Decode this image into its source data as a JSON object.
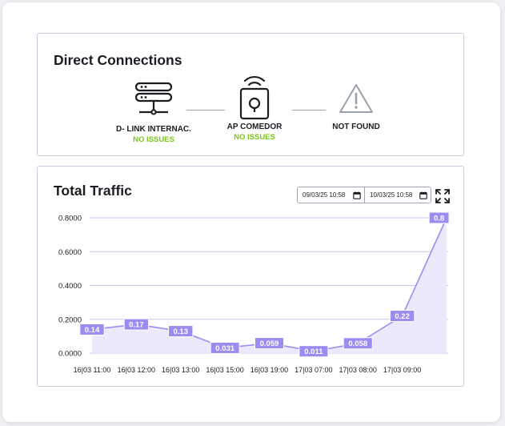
{
  "connections": {
    "title": "Direct Connections",
    "devices": [
      {
        "name": "D- LINK INTERNAC.",
        "status": "NO ISSUES",
        "icon": "server-icon"
      },
      {
        "name": "AP COMEDOR",
        "status": "NO ISSUES",
        "icon": "wireless-access-point-icon"
      },
      {
        "name": "NOT FOUND",
        "status": "",
        "icon": "warning-icon"
      }
    ],
    "status_color": "#7ac61a"
  },
  "traffic": {
    "title": "Total Traffic",
    "date_from": "09/03/25 10:58",
    "date_to": "10/03/25 10:58"
  },
  "chart_data": {
    "type": "area",
    "x": [
      "16|03 11:00",
      "16|03 12:00",
      "16|03 13:00",
      "16|03 15:00",
      "16|03 19:00",
      "17|03 07:00",
      "17|03 08:00",
      "17|03 09:00",
      ""
    ],
    "values": [
      0.14,
      0.17,
      0.13,
      0.031,
      0.059,
      0.011,
      0.058,
      0.22,
      0.8
    ],
    "data_labels": [
      "0.14",
      "0.17",
      "0.13",
      "0.031",
      "0.059",
      "0.011",
      "0.058",
      "0.22",
      "0.8"
    ],
    "yticks": [
      "0.0000",
      "0.2000",
      "0.4000",
      "0.6000",
      "0.8000"
    ],
    "ylim": [
      0,
      0.8
    ],
    "grid": true,
    "line_color": "#9d8cf0",
    "fill_color": "#ece9fc",
    "label_bg": "#9d8cf0"
  }
}
